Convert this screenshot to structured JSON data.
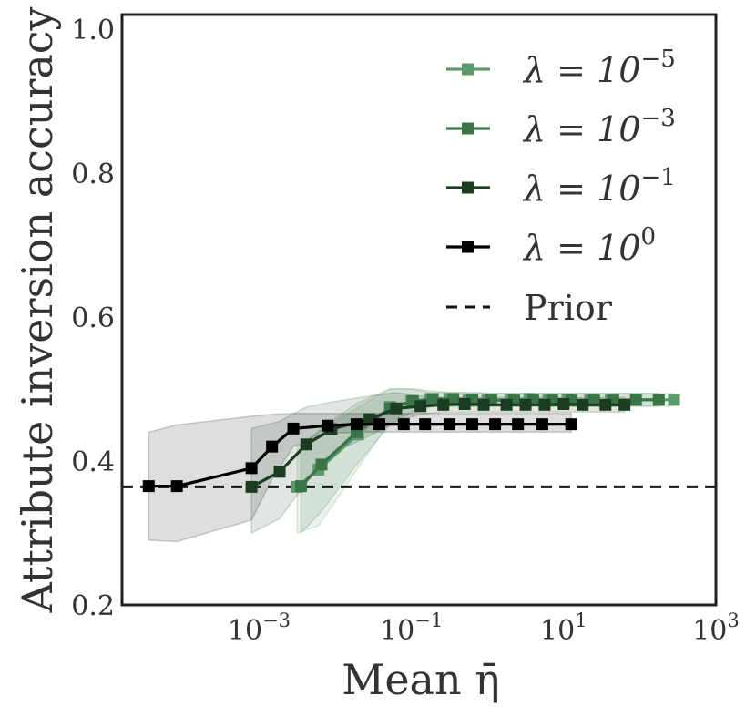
{
  "chart_data": {
    "type": "line",
    "xscale": "log",
    "xlabel": "Mean η̄",
    "ylabel": "Attribute inversion accuracy",
    "xlim_log10": [
      -4.8,
      3
    ],
    "ylim": [
      0.2,
      1.02
    ],
    "yticks": [
      0.2,
      0.4,
      0.6,
      0.8,
      1.0
    ],
    "ytick_labels": [
      "0.2",
      "0.4",
      "0.6",
      "0.8",
      "1.0"
    ],
    "xticks_log10": [
      -3,
      -1,
      1,
      3
    ],
    "xtick_labels": [
      {
        "base": "10",
        "exp": "−3"
      },
      {
        "base": "10",
        "exp": "−1"
      },
      {
        "base": "10",
        "exp": "1"
      },
      {
        "base": "10",
        "exp": "3"
      }
    ],
    "legend_position": "upper-right",
    "prior": {
      "name": "Prior",
      "value": 0.364,
      "color": "#111111",
      "style": "dashed"
    },
    "series": [
      {
        "name": "λ = 10^-5",
        "lambda_exp": "−5",
        "color": "#5b9a6b",
        "log10_x": [
          -2.5,
          -2.22,
          -1.7,
          -1.28,
          -1.0,
          -0.75,
          -0.5,
          -0.25,
          0.0,
          0.3,
          0.55,
          0.8,
          1.05,
          1.35,
          1.62,
          1.95,
          2.25,
          2.45
        ],
        "y": [
          0.364,
          0.388,
          0.437,
          0.475,
          0.483,
          0.486,
          0.486,
          0.484,
          0.484,
          0.485,
          0.486,
          0.484,
          0.485,
          0.484,
          0.484,
          0.485,
          0.485,
          0.485
        ],
        "band_upper": [
          0.42,
          0.44,
          0.475,
          0.5,
          0.5,
          0.495,
          0.495,
          0.495,
          0.494,
          0.494,
          0.494,
          0.494,
          0.494,
          0.494,
          0.494,
          0.494,
          0.494,
          0.494
        ],
        "band_lower": [
          0.3,
          0.31,
          0.39,
          0.455,
          0.468,
          0.476,
          0.476,
          0.476,
          0.476,
          0.476,
          0.476,
          0.476,
          0.476,
          0.476,
          0.476,
          0.476,
          0.476,
          0.476
        ]
      },
      {
        "name": "λ = 10^-3",
        "lambda_exp": "−3",
        "color": "#3a7548",
        "log10_x": [
          -2.45,
          -2.18,
          -1.72,
          -1.28,
          -0.98,
          -0.72,
          -0.45,
          -0.2,
          0.05,
          0.35,
          0.6,
          0.85,
          1.1,
          1.4,
          1.65,
          1.95,
          2.25
        ],
        "y": [
          0.365,
          0.395,
          0.44,
          0.473,
          0.483,
          0.486,
          0.486,
          0.485,
          0.485,
          0.484,
          0.485,
          0.484,
          0.484,
          0.484,
          0.484,
          0.485,
          0.485
        ],
        "band_upper": [
          0.42,
          0.445,
          0.48,
          0.5,
          0.5,
          0.497,
          0.495,
          0.495,
          0.494,
          0.494,
          0.494,
          0.494,
          0.494,
          0.494,
          0.494,
          0.494,
          0.494
        ],
        "band_lower": [
          0.3,
          0.33,
          0.395,
          0.45,
          0.468,
          0.476,
          0.476,
          0.476,
          0.476,
          0.476,
          0.476,
          0.476,
          0.476,
          0.476,
          0.476,
          0.476,
          0.476
        ]
      },
      {
        "name": "λ = 10^-1",
        "lambda_exp": "−1",
        "color": "#1a3d22",
        "log10_x": [
          -3.1,
          -2.73,
          -2.38,
          -2.05,
          -1.55,
          -1.2,
          -0.88,
          -0.58,
          -0.3,
          -0.05,
          0.25,
          0.5,
          0.75,
          1.0,
          1.25,
          1.55,
          1.8
        ],
        "y": [
          0.364,
          0.385,
          0.423,
          0.444,
          0.458,
          0.473,
          0.476,
          0.478,
          0.479,
          0.478,
          0.478,
          0.478,
          0.478,
          0.479,
          0.478,
          0.478,
          0.478
        ],
        "band_upper": [
          0.445,
          0.455,
          0.475,
          0.482,
          0.49,
          0.495,
          0.49,
          0.488,
          0.488,
          0.488,
          0.488,
          0.488,
          0.488,
          0.488,
          0.488,
          0.488,
          0.488
        ],
        "band_lower": [
          0.3,
          0.32,
          0.37,
          0.41,
          0.435,
          0.455,
          0.465,
          0.468,
          0.468,
          0.468,
          0.468,
          0.468,
          0.468,
          0.468,
          0.468,
          0.468,
          0.468
        ]
      },
      {
        "name": "λ = 10^0",
        "lambda_exp": "0",
        "color": "#000000",
        "log10_x": [
          -4.45,
          -4.08,
          -3.1,
          -2.83,
          -2.55,
          -2.1,
          -1.72,
          -1.42,
          -1.1,
          -0.82,
          -0.5,
          -0.2,
          0.1,
          0.4,
          0.72,
          1.1
        ],
        "y": [
          0.365,
          0.365,
          0.39,
          0.42,
          0.445,
          0.449,
          0.451,
          0.451,
          0.451,
          0.451,
          0.451,
          0.451,
          0.451,
          0.451,
          0.451,
          0.451
        ],
        "band_upper": [
          0.44,
          0.45,
          0.462,
          0.465,
          0.466,
          0.466,
          0.466,
          0.466,
          0.466,
          0.466,
          0.466,
          0.466,
          0.466,
          0.466,
          0.466,
          0.466
        ],
        "band_lower": [
          0.29,
          0.288,
          0.318,
          0.375,
          0.42,
          0.438,
          0.44,
          0.44,
          0.44,
          0.44,
          0.44,
          0.44,
          0.44,
          0.44,
          0.44,
          0.44
        ]
      }
    ]
  }
}
